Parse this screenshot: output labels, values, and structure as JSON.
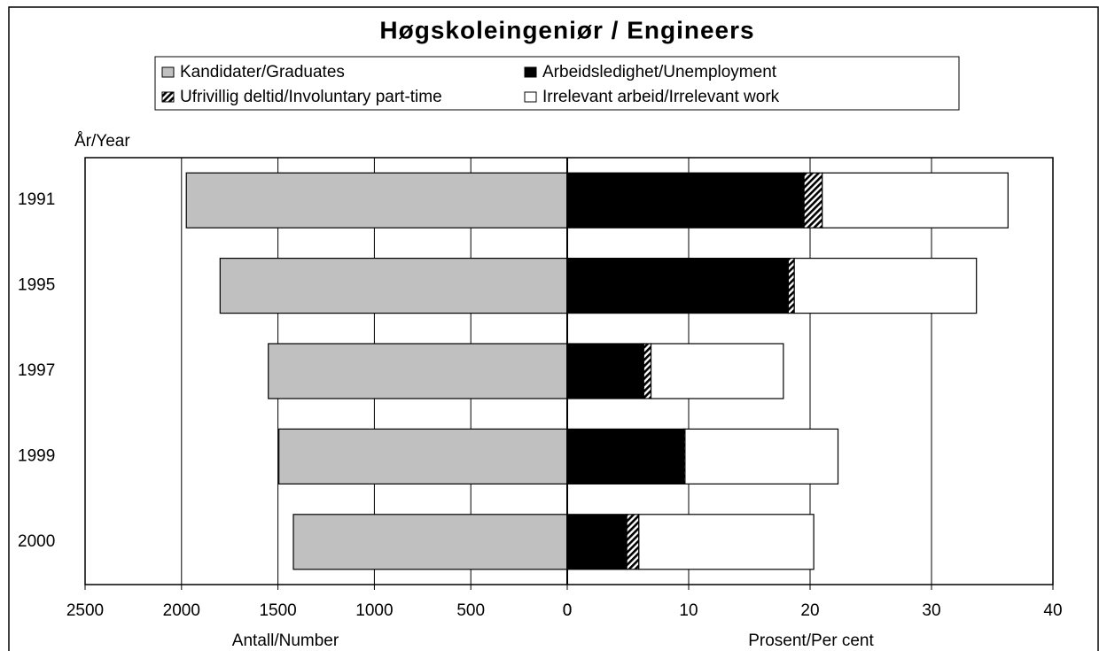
{
  "chart_data": {
    "type": "butterfly-bar",
    "title": "Høgskoleingeniør / Engineers",
    "y_label": "År/Year",
    "x_label": "Antall/Number",
    "x2_label": "Prosent/Per cent",
    "categories": [
      "1991",
      "1995",
      "1997",
      "1999",
      "2000"
    ],
    "series": [
      {
        "name": "Kandidater/Graduates",
        "color": "#c0c0c0",
        "axis": "x",
        "values": [
          1975,
          1800,
          1550,
          1495,
          1420
        ]
      },
      {
        "name": "Arbeidsledighet/Unemployment",
        "color": "#000000",
        "axis": "x2",
        "values": [
          19.5,
          18.2,
          6.3,
          9.6,
          4.9
        ]
      },
      {
        "name": "Ufrivillig deltid/Involuntary part-time",
        "color": "#000000",
        "pattern": "diagonal",
        "axis": "x2",
        "values": [
          1.5,
          0.5,
          0.6,
          0.1,
          1.0
        ]
      },
      {
        "name": "Irrelevant arbeid/Irrelevant work",
        "color": "#ffffff",
        "axis": "x2",
        "values": [
          15.3,
          15.0,
          10.9,
          12.6,
          14.4
        ]
      }
    ],
    "xlim": [
      2500,
      0
    ],
    "xticks": [
      2500,
      2000,
      1500,
      1000,
      500,
      0
    ],
    "x2lim": [
      0,
      40
    ],
    "x2ticks": [
      0,
      10,
      20,
      30,
      40
    ],
    "grid": true
  }
}
